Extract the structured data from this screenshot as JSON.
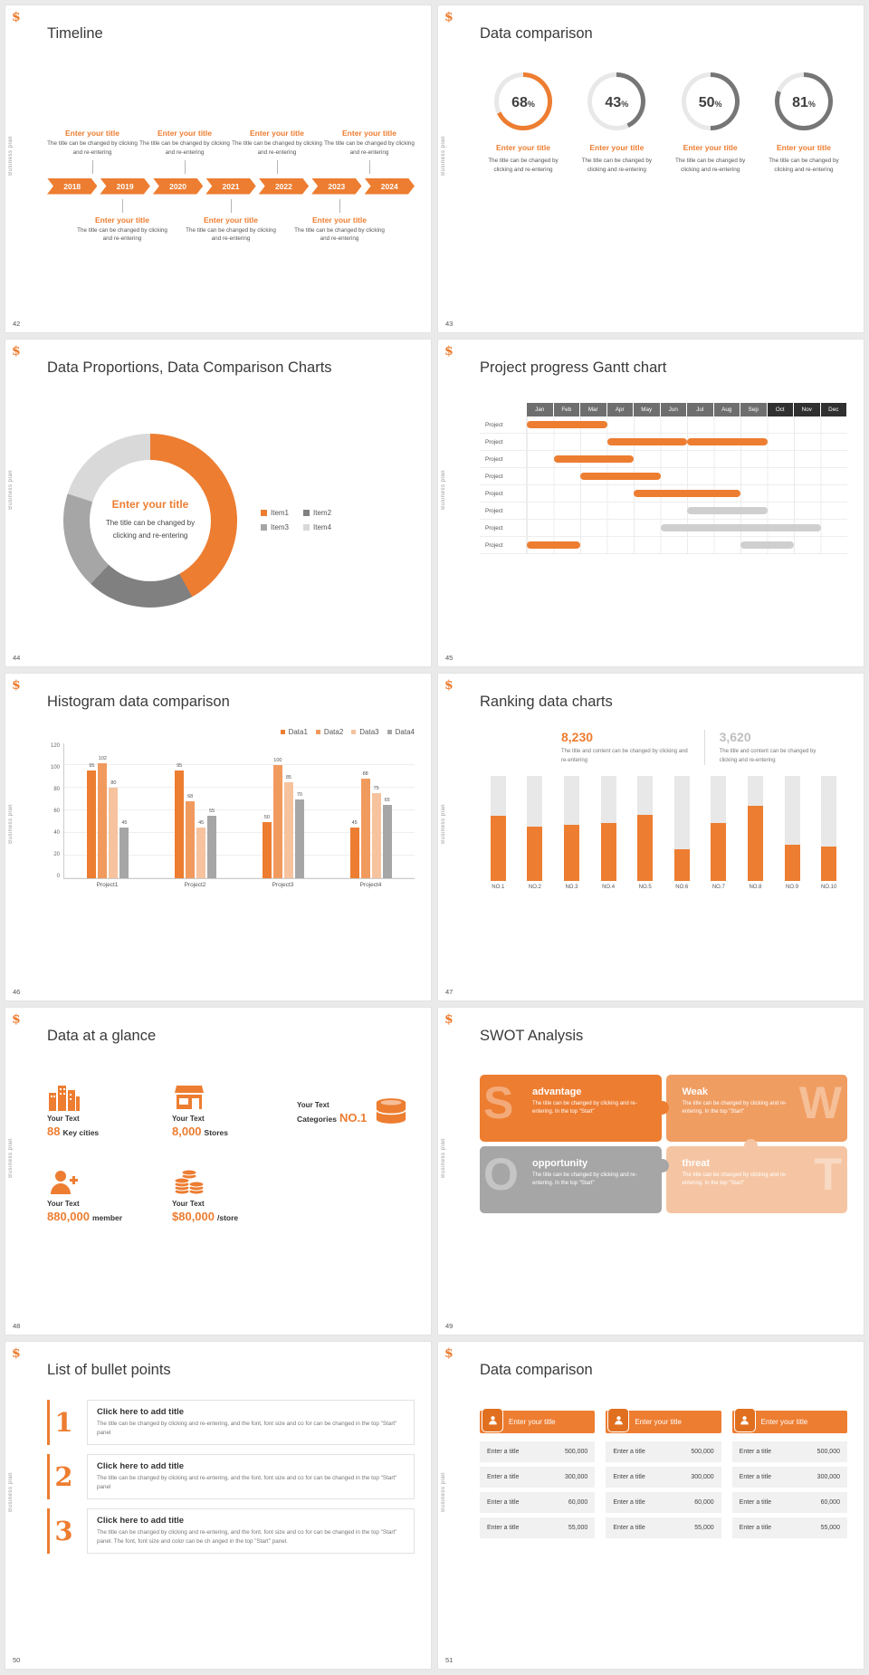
{
  "common": {
    "brand_icon": "$",
    "side_label": "Business plan",
    "percent_sign": "%"
  },
  "theme": {
    "orange": "#ED7D31",
    "orange_dark": "#E06F1F",
    "gray_bar": "#CFCFCF",
    "track": "#E8E8E8",
    "gantt_head": "#6E6E6E",
    "gantt_head_dark": "#303030"
  },
  "slides": {
    "timeline": {
      "page": "42",
      "title": "Timeline",
      "years": [
        "2018",
        "2019",
        "2020",
        "2021",
        "2022",
        "2023",
        "2024"
      ],
      "top_entries": 4,
      "bottom_entries": 3,
      "entry_title": "Enter your title",
      "entry_desc": "The title can be changed by clicking and re-entering"
    },
    "circles": {
      "page": "43",
      "title": "Data comparison",
      "item_title": "Enter your title",
      "item_desc": "The title can be changed by clicking and re-entering",
      "items": [
        {
          "percent": 68,
          "color": "#ED7D31"
        },
        {
          "percent": 43,
          "color": "#767676"
        },
        {
          "percent": 50,
          "color": "#767676"
        },
        {
          "percent": 81,
          "color": "#767676"
        }
      ]
    },
    "donut": {
      "page": "44",
      "title": "Data Proportions, Data Comparison Charts",
      "center_title": "Enter your title",
      "center_desc": "The title can be changed by clicking and re-entering",
      "chart_data": {
        "type": "pie",
        "labels": [
          "Item1",
          "Item2",
          "Item3",
          "Item4"
        ],
        "values": [
          42,
          20,
          18,
          20
        ],
        "colors": [
          "#ED7D31",
          "#808080",
          "#A6A6A6",
          "#D9D9D9"
        ],
        "legend_position": "right"
      }
    },
    "gantt": {
      "page": "45",
      "title": "Project progress Gantt chart",
      "months": [
        "Jan",
        "Feb",
        "Mar",
        "Apr",
        "May",
        "Jun",
        "Jul",
        "Aug",
        "Sep",
        "Oct",
        "Nov",
        "Dec"
      ],
      "dark_from_index": 9,
      "row_label": "Project",
      "rows": [
        {
          "bars": [
            {
              "start": 1,
              "end": 3,
              "color": "orange"
            }
          ]
        },
        {
          "bars": [
            {
              "start": 4,
              "end": 6,
              "color": "orange"
            },
            {
              "start": 7,
              "end": 9,
              "color": "orange"
            }
          ]
        },
        {
          "bars": [
            {
              "start": 2,
              "end": 4,
              "color": "orange"
            }
          ]
        },
        {
          "bars": [
            {
              "start": 3,
              "end": 5,
              "color": "orange"
            }
          ]
        },
        {
          "bars": [
            {
              "start": 5,
              "end": 8,
              "color": "orange"
            }
          ]
        },
        {
          "bars": [
            {
              "start": 7,
              "end": 9,
              "color": "gray"
            }
          ]
        },
        {
          "bars": [
            {
              "start": 6,
              "end": 11,
              "color": "gray"
            }
          ]
        },
        {
          "bars": [
            {
              "start": 1,
              "end": 2,
              "color": "orange"
            },
            {
              "start": 9,
              "end": 10,
              "color": "gray"
            }
          ]
        }
      ]
    },
    "histogram": {
      "page": "46",
      "title": "Histogram data comparison",
      "chart_data": {
        "type": "bar",
        "categories": [
          "Project1",
          "Project2",
          "Project3",
          "Project4"
        ],
        "series": [
          {
            "name": "Data1",
            "color": "#ED7D31",
            "values": [
              95,
              95,
              50,
              45
            ]
          },
          {
            "name": "Data2",
            "color": "#F19A5E",
            "values": [
              102,
              68,
              100,
              88
            ]
          },
          {
            "name": "Data3",
            "color": "#F6C39E",
            "values": [
              80,
              45,
              85,
              75
            ]
          },
          {
            "name": "Data4",
            "color": "#A6A6A6",
            "values": [
              45,
              55,
              70,
              65
            ]
          }
        ],
        "ylim": [
          0,
          120
        ],
        "yticks": [
          0,
          20,
          40,
          60,
          80,
          100,
          120
        ],
        "legend_position": "top-right",
        "grid": true
      }
    },
    "ranking": {
      "page": "47",
      "title": "Ranking data charts",
      "stats": [
        {
          "value": "8,230",
          "color": "#ED7D31",
          "desc": "The title and content can be changed by clicking and re-entering"
        },
        {
          "value": "3,620",
          "color": "#BFBFBF",
          "desc": "The title and content can be changed by clicking and re-entering"
        }
      ],
      "chart_data": {
        "type": "bar",
        "categories": [
          "NO.1",
          "NO.2",
          "NO.3",
          "NO.4",
          "NO.5",
          "NO.6",
          "NO.7",
          "NO.8",
          "NO.9",
          "NO.10"
        ],
        "values": [
          62,
          52,
          54,
          55,
          63,
          30,
          55,
          72,
          35,
          33
        ],
        "ymax": 100,
        "bar_color": "#ED7D31",
        "track_color": "#E8E8E8"
      }
    },
    "glance": {
      "page": "48",
      "title": "Data at a glance",
      "stats": [
        {
          "icon": "buildings-icon",
          "label": "Your Text",
          "num": "88",
          "unit": "Key cities",
          "layout": "icon-top"
        },
        {
          "icon": "store-icon",
          "label": "Your Text",
          "num": "8,000",
          "unit": "Stores",
          "layout": "icon-top"
        },
        {
          "icon": "database-icon",
          "label": "Your Text",
          "num": "NO.1",
          "unit": "Categories",
          "layout": "icon-right"
        },
        {
          "icon": "member-icon",
          "label": "Your Text",
          "num": "880,000",
          "unit": "member",
          "layout": "icon-top"
        },
        {
          "icon": "coins-icon",
          "label": "Your Text",
          "num": "$80,000",
          "unit": "/store",
          "layout": "icon-top"
        }
      ]
    },
    "swot": {
      "page": "49",
      "title": "SWOT Analysis",
      "quadrants": [
        {
          "letter": "S",
          "heading": "advantage",
          "desc": "The title can be changed by clicking and re-entering. In the top \"Start\"",
          "color": "#ED7D31",
          "letter_side": "left"
        },
        {
          "letter": "W",
          "heading": "Weak",
          "desc": "The title can be changed by clicking and re-entering. In the top \"Start\"",
          "color": "#F09D62",
          "letter_side": "right"
        },
        {
          "letter": "O",
          "heading": "opportunity",
          "desc": "The title can be changed by clicking and re-entering. In the top \"Start\"",
          "color": "#A6A6A6",
          "letter_side": "left"
        },
        {
          "letter": "T",
          "heading": "threat",
          "desc": "The title can be changed by clicking and re-entering. In the top \"Start\"",
          "color": "#F5C5A3",
          "letter_side": "right"
        }
      ]
    },
    "bullets": {
      "page": "50",
      "title": "List of bullet points",
      "items": [
        {
          "num": "1",
          "heading": "Click here to add title",
          "desc": "The title can be changed by clicking and re-entering, and the font, font size and co for can be changed in the top \"Start\" panel"
        },
        {
          "num": "2",
          "heading": "Click here to add title",
          "desc": "The title can be changed by clicking and re-entering, and the font, font size and co for can be changed in the top \"Start\" panel"
        },
        {
          "num": "3",
          "heading": "Click here to add title",
          "desc": "The title can be changed by clicking and re-entering, and the font, font size and co for can be changed in the top \"Start\" panel. The font, font size and color can be ch anged in the top \"Start\" panel."
        }
      ]
    },
    "tables": {
      "page": "51",
      "title": "Data comparison",
      "columns": [
        {
          "header": "Enter your title",
          "rows": [
            {
              "label": "Enter a title",
              "value": "500,000"
            },
            {
              "label": "Enter a title",
              "value": "300,000"
            },
            {
              "label": "Enter a title",
              "value": "60,000"
            },
            {
              "label": "Enter a title",
              "value": "55,000"
            }
          ]
        },
        {
          "header": "Enter your title",
          "rows": [
            {
              "label": "Enter a title",
              "value": "500,000"
            },
            {
              "label": "Enter a title",
              "value": "300,000"
            },
            {
              "label": "Enter a title",
              "value": "60,000"
            },
            {
              "label": "Enter a title",
              "value": "55,000"
            }
          ]
        },
        {
          "header": "Enter your title",
          "rows": [
            {
              "label": "Enter a title",
              "value": "500,000"
            },
            {
              "label": "Enter a title",
              "value": "300,000"
            },
            {
              "label": "Enter a title",
              "value": "60,000"
            },
            {
              "label": "Enter a title",
              "value": "55,000"
            }
          ]
        }
      ]
    }
  }
}
